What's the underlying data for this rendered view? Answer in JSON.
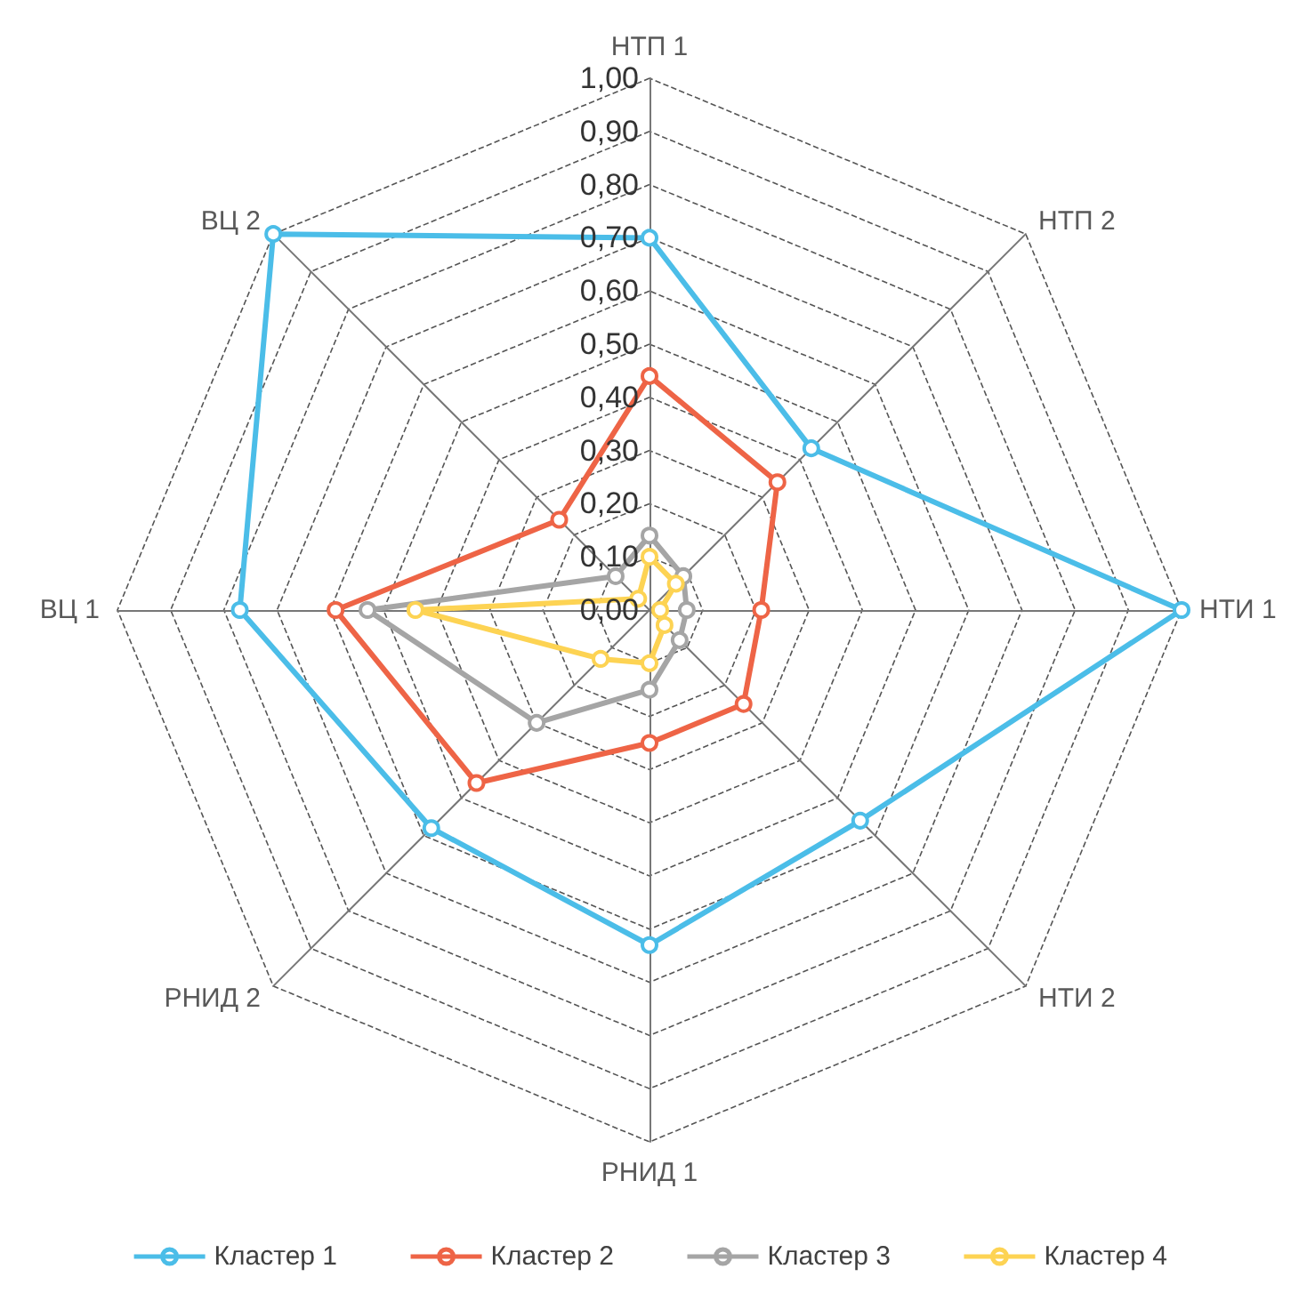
{
  "chart_data": {
    "type": "radar",
    "categories": [
      "НТП 1",
      "НТП 2",
      "НТИ 1",
      "НТИ 2",
      "РНИД 1",
      "РНИД 2",
      "ВЦ 1",
      "ВЦ 2"
    ],
    "series": [
      {
        "name": "Кластер 1",
        "color": "#4bbde8",
        "values": [
          0.7,
          0.43,
          1.0,
          0.56,
          0.63,
          0.58,
          0.77,
          1.0
        ]
      },
      {
        "name": "Кластер 2",
        "color": "#ee6446",
        "values": [
          0.44,
          0.34,
          0.21,
          0.25,
          0.25,
          0.46,
          0.59,
          0.24
        ]
      },
      {
        "name": "Кластер 3",
        "color": "#a5a5a5",
        "values": [
          0.14,
          0.09,
          0.07,
          0.08,
          0.15,
          0.3,
          0.53,
          0.09
        ]
      },
      {
        "name": "Кластер 4",
        "color": "#fdd353",
        "values": [
          0.1,
          0.07,
          0.02,
          0.04,
          0.1,
          0.13,
          0.44,
          0.03
        ]
      }
    ],
    "ylim": [
      0,
      1
    ],
    "yticks": [
      {
        "value": 0,
        "label": "0,00"
      },
      {
        "value": 0.1,
        "label": "0,10"
      },
      {
        "value": 0.2,
        "label": "0,20"
      },
      {
        "value": 0.3,
        "label": "0,30"
      },
      {
        "value": 0.4,
        "label": "0,40"
      },
      {
        "value": 0.5,
        "label": "0,50"
      },
      {
        "value": 0.6,
        "label": "0,60"
      },
      {
        "value": 0.7,
        "label": "0,70"
      },
      {
        "value": 0.8,
        "label": "0,80"
      },
      {
        "value": 0.9,
        "label": "0,90"
      },
      {
        "value": 1,
        "label": "1,00"
      }
    ],
    "legend": "bottom",
    "marker": "circle",
    "line_style": "solid"
  }
}
